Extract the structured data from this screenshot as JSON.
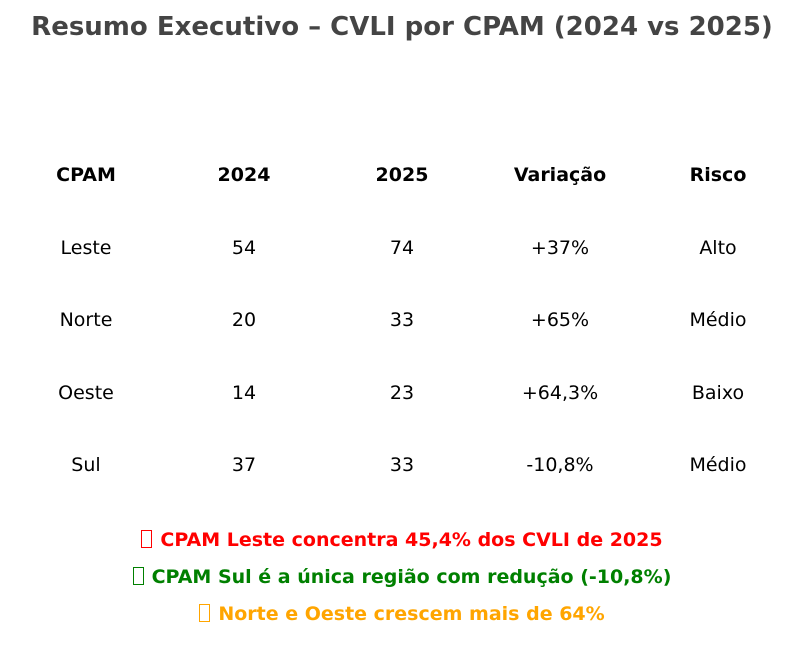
{
  "title": "Resumo Executivo – CVLI por CPAM (2024 vs 2025)",
  "chart_data": {
    "type": "table",
    "title": "Resumo Executivo – CVLI por CPAM (2024 vs 2025)",
    "columns": [
      "CPAM",
      "2024",
      "2025",
      "Variação",
      "Risco"
    ],
    "rows": [
      [
        "Leste",
        "54",
        "74",
        "+37%",
        "Alto"
      ],
      [
        "Norte",
        "20",
        "33",
        "+65%",
        "Médio"
      ],
      [
        "Oeste",
        "14",
        "23",
        "+64,3%",
        "Baixo"
      ],
      [
        "Sul",
        "37",
        "33",
        "-10,8%",
        "Médio"
      ]
    ]
  },
  "notes": [
    {
      "text": "CPAM Leste concentra 45,4% dos CVLI de 2025",
      "color": "#ff0000",
      "icon": "missing-glyph-icon"
    },
    {
      "text": "CPAM Sul é a única região com redução (-10,8%)",
      "color": "#008000",
      "icon": "missing-glyph-icon"
    },
    {
      "text": "Norte e Oeste crescem mais de 64%",
      "color": "#ffa500",
      "icon": "missing-glyph-icon"
    }
  ]
}
